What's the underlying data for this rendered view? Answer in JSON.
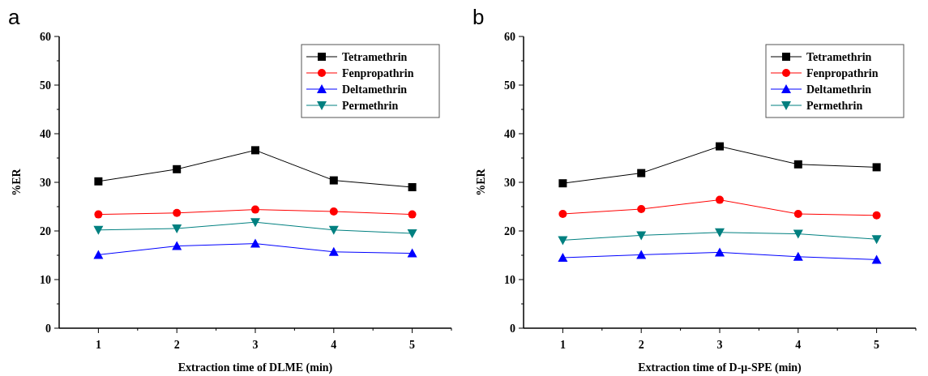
{
  "chart_data": [
    {
      "type": "line",
      "title": "a",
      "xlabel": "Extraction time of DLME (min)",
      "ylabel": "%ER",
      "x": [
        1,
        2,
        3,
        4,
        5
      ],
      "xlim": [
        0.5,
        5.5
      ],
      "xticks": [
        1,
        {
          "value": 1.5,
          "label": null
        },
        2,
        {
          "value": 2.5,
          "label": null
        },
        3,
        {
          "value": 3.5,
          "label": null
        },
        4,
        {
          "value": 4.5,
          "label": null
        },
        5,
        {
          "value": 5.5,
          "label": null
        }
      ],
      "ylim": [
        0,
        60
      ],
      "yticks": [
        0,
        {
          "value": 5,
          "label": null
        },
        10,
        {
          "value": 15,
          "label": null
        },
        20,
        {
          "value": 25,
          "label": null
        },
        30,
        {
          "value": 35,
          "label": null
        },
        40,
        {
          "value": 45,
          "label": null
        },
        50,
        {
          "value": 55,
          "label": null
        },
        60
      ],
      "legend": "top right",
      "series": [
        {
          "name": "Tetramethrin",
          "color": "#000000",
          "marker": "square",
          "values": [
            30.2,
            32.7,
            36.6,
            30.4,
            29.0
          ]
        },
        {
          "name": "Fenpropathrin",
          "color": "#ff0000",
          "marker": "circle",
          "values": [
            23.4,
            23.7,
            24.4,
            24.0,
            23.4
          ]
        },
        {
          "name": "Deltamethrin",
          "color": "#0000ff",
          "marker": "triangle",
          "values": [
            15.1,
            16.9,
            17.4,
            15.7,
            15.4
          ]
        },
        {
          "name": "Permethrin",
          "color": "#008080",
          "marker": "triangle-down",
          "values": [
            20.2,
            20.5,
            21.8,
            20.2,
            19.5
          ]
        }
      ]
    },
    {
      "type": "line",
      "title": "b",
      "xlabel": "Extraction time of D-μ-SPE (min)",
      "ylabel": "%ER",
      "x": [
        1,
        2,
        3,
        4,
        5
      ],
      "xlim": [
        0.5,
        5.5
      ],
      "xticks": [
        1,
        {
          "value": 1.5,
          "label": null
        },
        2,
        {
          "value": 2.5,
          "label": null
        },
        3,
        {
          "value": 3.5,
          "label": null
        },
        4,
        {
          "value": 4.5,
          "label": null
        },
        5,
        {
          "value": 5.5,
          "label": null
        }
      ],
      "ylim": [
        0,
        60
      ],
      "yticks": [
        0,
        {
          "value": 5,
          "label": null
        },
        10,
        {
          "value": 15,
          "label": null
        },
        20,
        {
          "value": 25,
          "label": null
        },
        30,
        {
          "value": 35,
          "label": null
        },
        40,
        {
          "value": 45,
          "label": null
        },
        50,
        {
          "value": 55,
          "label": null
        },
        60
      ],
      "legend": "top right",
      "series": [
        {
          "name": "Tetramethrin",
          "color": "#000000",
          "marker": "square",
          "values": [
            29.8,
            31.9,
            37.4,
            33.7,
            33.1
          ]
        },
        {
          "name": "Fenpropathrin",
          "color": "#ff0000",
          "marker": "circle",
          "values": [
            23.5,
            24.5,
            26.4,
            23.5,
            23.2
          ]
        },
        {
          "name": "Deltamethrin",
          "color": "#0000ff",
          "marker": "triangle",
          "values": [
            14.5,
            15.1,
            15.6,
            14.7,
            14.1
          ]
        },
        {
          "name": "Permethrin",
          "color": "#008080",
          "marker": "triangle-down",
          "values": [
            18.1,
            19.1,
            19.7,
            19.4,
            18.3
          ]
        }
      ]
    }
  ]
}
